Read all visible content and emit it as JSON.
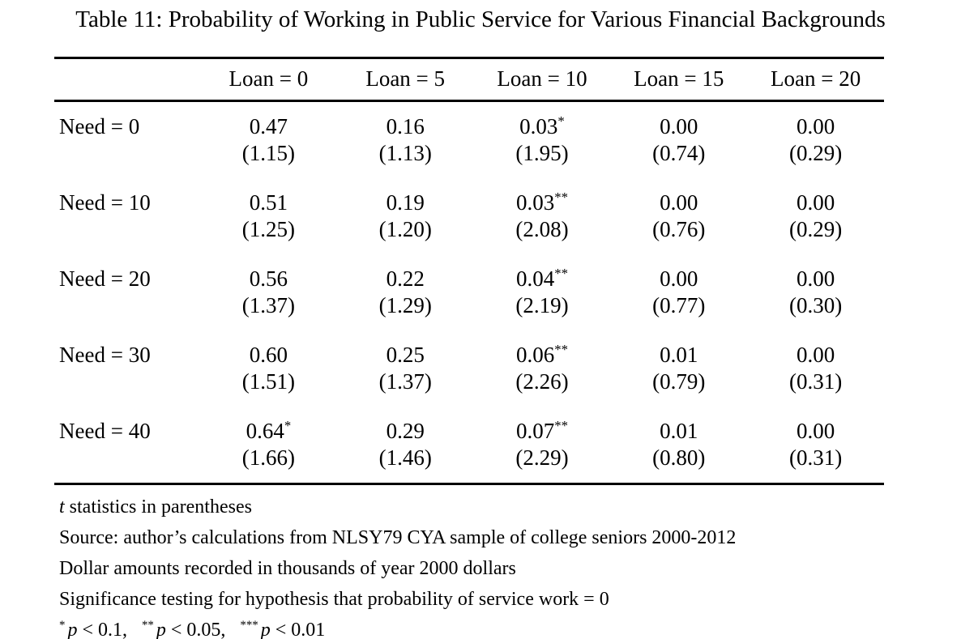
{
  "caption": "Table 11: Probability of Working in Public Service for Various Financial Backgrounds",
  "table": {
    "columns": [
      "Loan = 0",
      "Loan = 5",
      "Loan = 10",
      "Loan = 15",
      "Loan = 20"
    ],
    "rows": [
      {
        "label": "Need = 0",
        "cells": [
          {
            "est": "0.47",
            "stars": "",
            "t": "(1.15)"
          },
          {
            "est": "0.16",
            "stars": "",
            "t": "(1.13)"
          },
          {
            "est": "0.03",
            "stars": "*",
            "t": "(1.95)"
          },
          {
            "est": "0.00",
            "stars": "",
            "t": "(0.74)"
          },
          {
            "est": "0.00",
            "stars": "",
            "t": "(0.29)"
          }
        ]
      },
      {
        "label": "Need = 10",
        "cells": [
          {
            "est": "0.51",
            "stars": "",
            "t": "(1.25)"
          },
          {
            "est": "0.19",
            "stars": "",
            "t": "(1.20)"
          },
          {
            "est": "0.03",
            "stars": "**",
            "t": "(2.08)"
          },
          {
            "est": "0.00",
            "stars": "",
            "t": "(0.76)"
          },
          {
            "est": "0.00",
            "stars": "",
            "t": "(0.29)"
          }
        ]
      },
      {
        "label": "Need = 20",
        "cells": [
          {
            "est": "0.56",
            "stars": "",
            "t": "(1.37)"
          },
          {
            "est": "0.22",
            "stars": "",
            "t": "(1.29)"
          },
          {
            "est": "0.04",
            "stars": "**",
            "t": "(2.19)"
          },
          {
            "est": "0.00",
            "stars": "",
            "t": "(0.77)"
          },
          {
            "est": "0.00",
            "stars": "",
            "t": "(0.30)"
          }
        ]
      },
      {
        "label": "Need = 30",
        "cells": [
          {
            "est": "0.60",
            "stars": "",
            "t": "(1.51)"
          },
          {
            "est": "0.25",
            "stars": "",
            "t": "(1.37)"
          },
          {
            "est": "0.06",
            "stars": "**",
            "t": "(2.26)"
          },
          {
            "est": "0.01",
            "stars": "",
            "t": "(0.79)"
          },
          {
            "est": "0.00",
            "stars": "",
            "t": "(0.31)"
          }
        ]
      },
      {
        "label": "Need = 40",
        "cells": [
          {
            "est": "0.64",
            "stars": "*",
            "t": "(1.66)"
          },
          {
            "est": "0.29",
            "stars": "",
            "t": "(1.46)"
          },
          {
            "est": "0.07",
            "stars": "**",
            "t": "(2.29)"
          },
          {
            "est": "0.01",
            "stars": "",
            "t": "(0.80)"
          },
          {
            "est": "0.00",
            "stars": "",
            "t": "(0.31)"
          }
        ]
      }
    ]
  },
  "notes": {
    "tstat": {
      "italic": "t",
      "rest": " statistics in parentheses"
    },
    "source": "Source: author’s calculations from NLSY79 CYA sample of college seniors 2000-2012",
    "dollar": "Dollar amounts recorded in thousands of year 2000 dollars",
    "significance": "Significance testing for hypothesis that probability of service work = 0",
    "legend": [
      {
        "stars": "*",
        "var": "p",
        "cond": " < 0.1,"
      },
      {
        "stars": "**",
        "var": "p",
        "cond": " < 0.05,"
      },
      {
        "stars": "***",
        "var": "p",
        "cond": " < 0.01"
      }
    ]
  }
}
